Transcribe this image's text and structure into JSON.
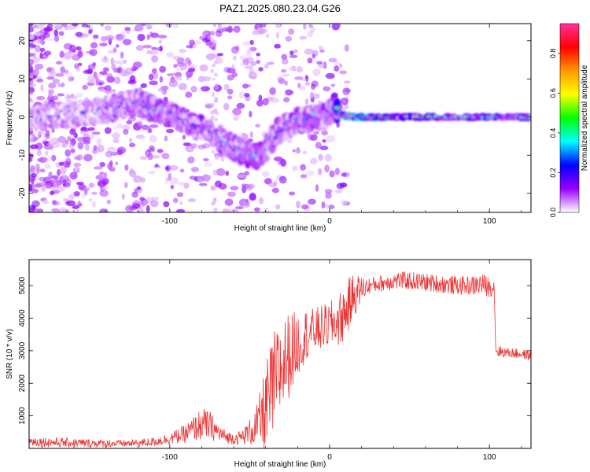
{
  "figure_title": "PAZ1.2025.080.23.04.G26",
  "chart_data": [
    {
      "type": "heatmap",
      "title": "PAZ1.2025.080.23.04.G26",
      "xlabel": "Height of straight line (km)",
      "ylabel": "Frequency (Hz)",
      "xlim": [
        -188,
        126
      ],
      "ylim": [
        -25,
        24.5
      ],
      "xticks": [
        -100,
        0,
        100
      ],
      "xtick_labels": [
        "-100",
        "0",
        "100"
      ],
      "yticks": [
        -20,
        -10,
        0,
        10,
        20
      ],
      "ytick_labels": [
        "-20",
        "-10",
        "0",
        "10",
        "20"
      ],
      "grid": false,
      "colorbar": {
        "label": "Normalized spectral amplitude",
        "range": [
          0,
          0.95
        ],
        "ticks": [
          0.0,
          0.2,
          0.4,
          0.6,
          0.8
        ],
        "tick_labels": [
          "0.0",
          "0.2",
          "0.4",
          "0.6",
          "0.8"
        ],
        "colors": [
          "#ffffff",
          "#9900ff",
          "#0000ff",
          "#00ffff",
          "#00ff00",
          "#ffff00",
          "#ff9900",
          "#ff0000",
          "#ff3399"
        ]
      },
      "ridge": {
        "x": [
          -188,
          -170,
          -150,
          -130,
          -120,
          -110,
          -100,
          -90,
          -80,
          -70,
          -60,
          -50,
          -45,
          -40,
          -35,
          -30,
          -25,
          -20,
          -15,
          -10,
          -5,
          0,
          3,
          6,
          8,
          15,
          30,
          60,
          90,
          126
        ],
        "frequency": [
          0,
          0.5,
          1,
          3,
          4,
          2,
          1,
          -1,
          -3,
          -5,
          -8,
          -10,
          -10,
          -9,
          -5,
          -3,
          -2,
          -1,
          -1,
          0,
          0,
          1,
          2.5,
          1,
          0.5,
          0,
          0,
          0,
          0,
          0
        ],
        "amplitude": [
          0.2,
          0.2,
          0.2,
          0.25,
          0.3,
          0.35,
          0.3,
          0.3,
          0.3,
          0.3,
          0.3,
          0.3,
          0.35,
          0.3,
          0.3,
          0.3,
          0.3,
          0.3,
          0.35,
          0.35,
          0.35,
          0.3,
          0.35,
          0.7,
          0.85,
          0.9,
          0.8,
          0.5,
          0.45,
          0.4
        ]
      }
    },
    {
      "type": "line",
      "xlabel": "Height of straight line (km)",
      "ylabel": "SNR (10 * v/v)",
      "xlim": [
        -188,
        126
      ],
      "ylim": [
        0,
        5800
      ],
      "xticks": [
        -100,
        0,
        100
      ],
      "xtick_labels": [
        "-100",
        "0",
        "100"
      ],
      "yticks": [
        1000,
        2000,
        3000,
        4000,
        5000
      ],
      "ytick_labels": [
        "1000",
        "2000",
        "3000",
        "4000",
        "5000"
      ],
      "grid": false,
      "color": "#ee3333",
      "series": [
        {
          "x": [
            -188,
            -170,
            -150,
            -130,
            -120,
            -110,
            -100,
            -90,
            -85,
            -80,
            -75,
            -70,
            -65,
            -60,
            -55,
            -50,
            -45,
            -40,
            -35,
            -30,
            -25,
            -20,
            -15,
            -10,
            -5,
            0,
            5,
            10,
            15,
            20,
            25,
            30,
            40,
            50,
            60,
            70,
            80,
            90,
            95,
            100,
            103,
            104,
            110,
            120,
            126
          ],
          "values": [
            220,
            180,
            160,
            150,
            160,
            200,
            300,
            450,
            600,
            750,
            700,
            500,
            350,
            300,
            350,
            500,
            700,
            1200,
            1900,
            2500,
            2900,
            3200,
            3500,
            3600,
            3700,
            3800,
            3900,
            4200,
            4700,
            4900,
            5000,
            5050,
            5150,
            5150,
            5100,
            5050,
            5000,
            5000,
            5050,
            4950,
            4950,
            3000,
            2950,
            2900,
            2850
          ],
          "noise": [
            150,
            150,
            130,
            110,
            120,
            140,
            180,
            280,
            400,
            500,
            450,
            300,
            200,
            180,
            220,
            400,
            700,
            1400,
            1700,
            1500,
            1300,
            1000,
            800,
            700,
            700,
            700,
            800,
            900,
            700,
            400,
            250,
            250,
            280,
            280,
            280,
            280,
            280,
            300,
            350,
            300,
            250,
            200,
            150,
            150,
            150
          ]
        }
      ]
    }
  ]
}
